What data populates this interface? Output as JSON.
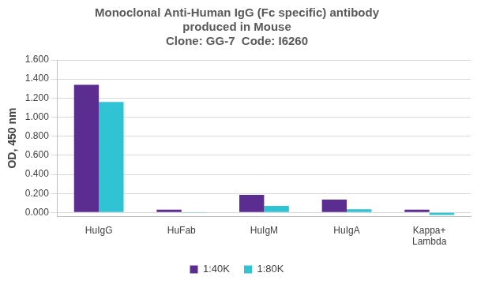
{
  "chart_data": {
    "type": "bar",
    "title": [
      "Monoclonal Anti-Human IgG (Fc specific) antibody",
      "produced in Mouse",
      "Clone: GG-7  Code: I6260"
    ],
    "y_label": "OD, 450 nm",
    "categories": [
      "HuIgG",
      "HuFab",
      "HuIgM",
      "HuIgA",
      "Kappa+ Lambda"
    ],
    "series": [
      {
        "name": "1:40K",
        "color": "#5c2d91",
        "values": [
          1.34,
          0.03,
          0.185,
          0.135,
          0.03
        ]
      },
      {
        "name": "1:80K",
        "color": "#2fc3d3",
        "values": [
          1.16,
          -0.005,
          0.07,
          0.035,
          -0.025
        ]
      }
    ],
    "ylim": [
      -0.04,
      1.6
    ],
    "yticks": [
      {
        "value": 0,
        "label": "0.000"
      },
      {
        "value": 0.2,
        "label": "0.200"
      },
      {
        "value": 0.4,
        "label": "0.400"
      },
      {
        "value": 0.6,
        "label": "0.600"
      },
      {
        "value": 0.8,
        "label": "0.800"
      },
      {
        "value": 1.0,
        "label": "1.000"
      },
      {
        "value": 1.2,
        "label": "1.200"
      },
      {
        "value": 1.4,
        "label": "1.400"
      },
      {
        "value": 1.6,
        "label": "1.600"
      }
    ],
    "grid": true,
    "legend": "bottom"
  }
}
